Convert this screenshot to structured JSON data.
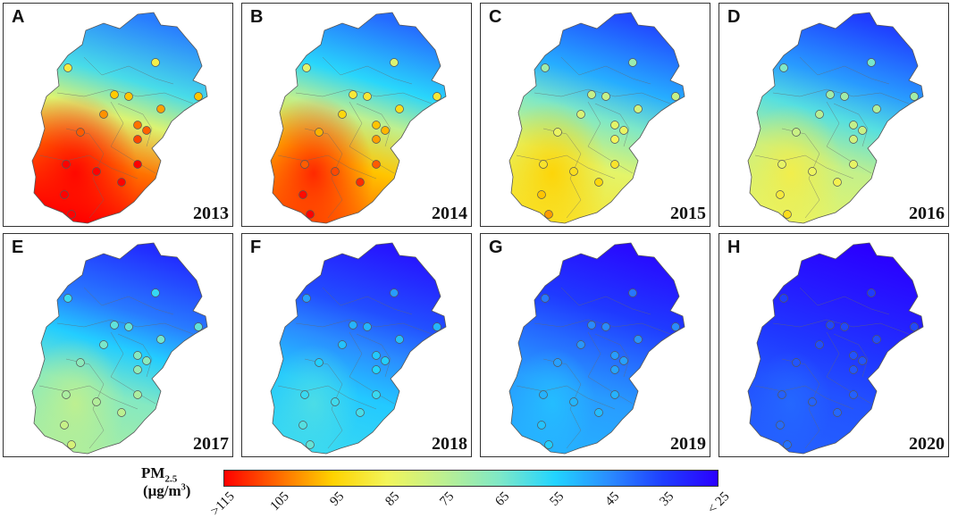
{
  "panels": [
    {
      "letter": "A",
      "year": "2013",
      "level": 1.0
    },
    {
      "letter": "B",
      "year": "2014",
      "level": 0.9
    },
    {
      "letter": "C",
      "year": "2015",
      "level": 0.72
    },
    {
      "letter": "D",
      "year": "2016",
      "level": 0.64
    },
    {
      "letter": "E",
      "year": "2017",
      "level": 0.52
    },
    {
      "letter": "F",
      "year": "2018",
      "level": 0.36
    },
    {
      "letter": "G",
      "year": "2019",
      "level": 0.28
    },
    {
      "letter": "H",
      "year": "2020",
      "level": 0.16
    }
  ],
  "legend": {
    "title_main": "PM",
    "title_sub": "2.5",
    "unit_prefix": "(μg/m",
    "unit_sup": "3",
    "unit_suffix": ")",
    "ticks": [
      ">115",
      "105",
      "95",
      "85",
      "75",
      "65",
      "55",
      "45",
      "35",
      "< 25"
    ],
    "colors": [
      "#ff0000",
      "#ff6a00",
      "#ffd200",
      "#f2f55a",
      "#bff08f",
      "#7de8c8",
      "#22d4ff",
      "#2a8cff",
      "#1f3dff",
      "#2a00ff"
    ]
  },
  "colors": {
    "high": "#ff1a00",
    "clean": "#2a2cff"
  }
}
